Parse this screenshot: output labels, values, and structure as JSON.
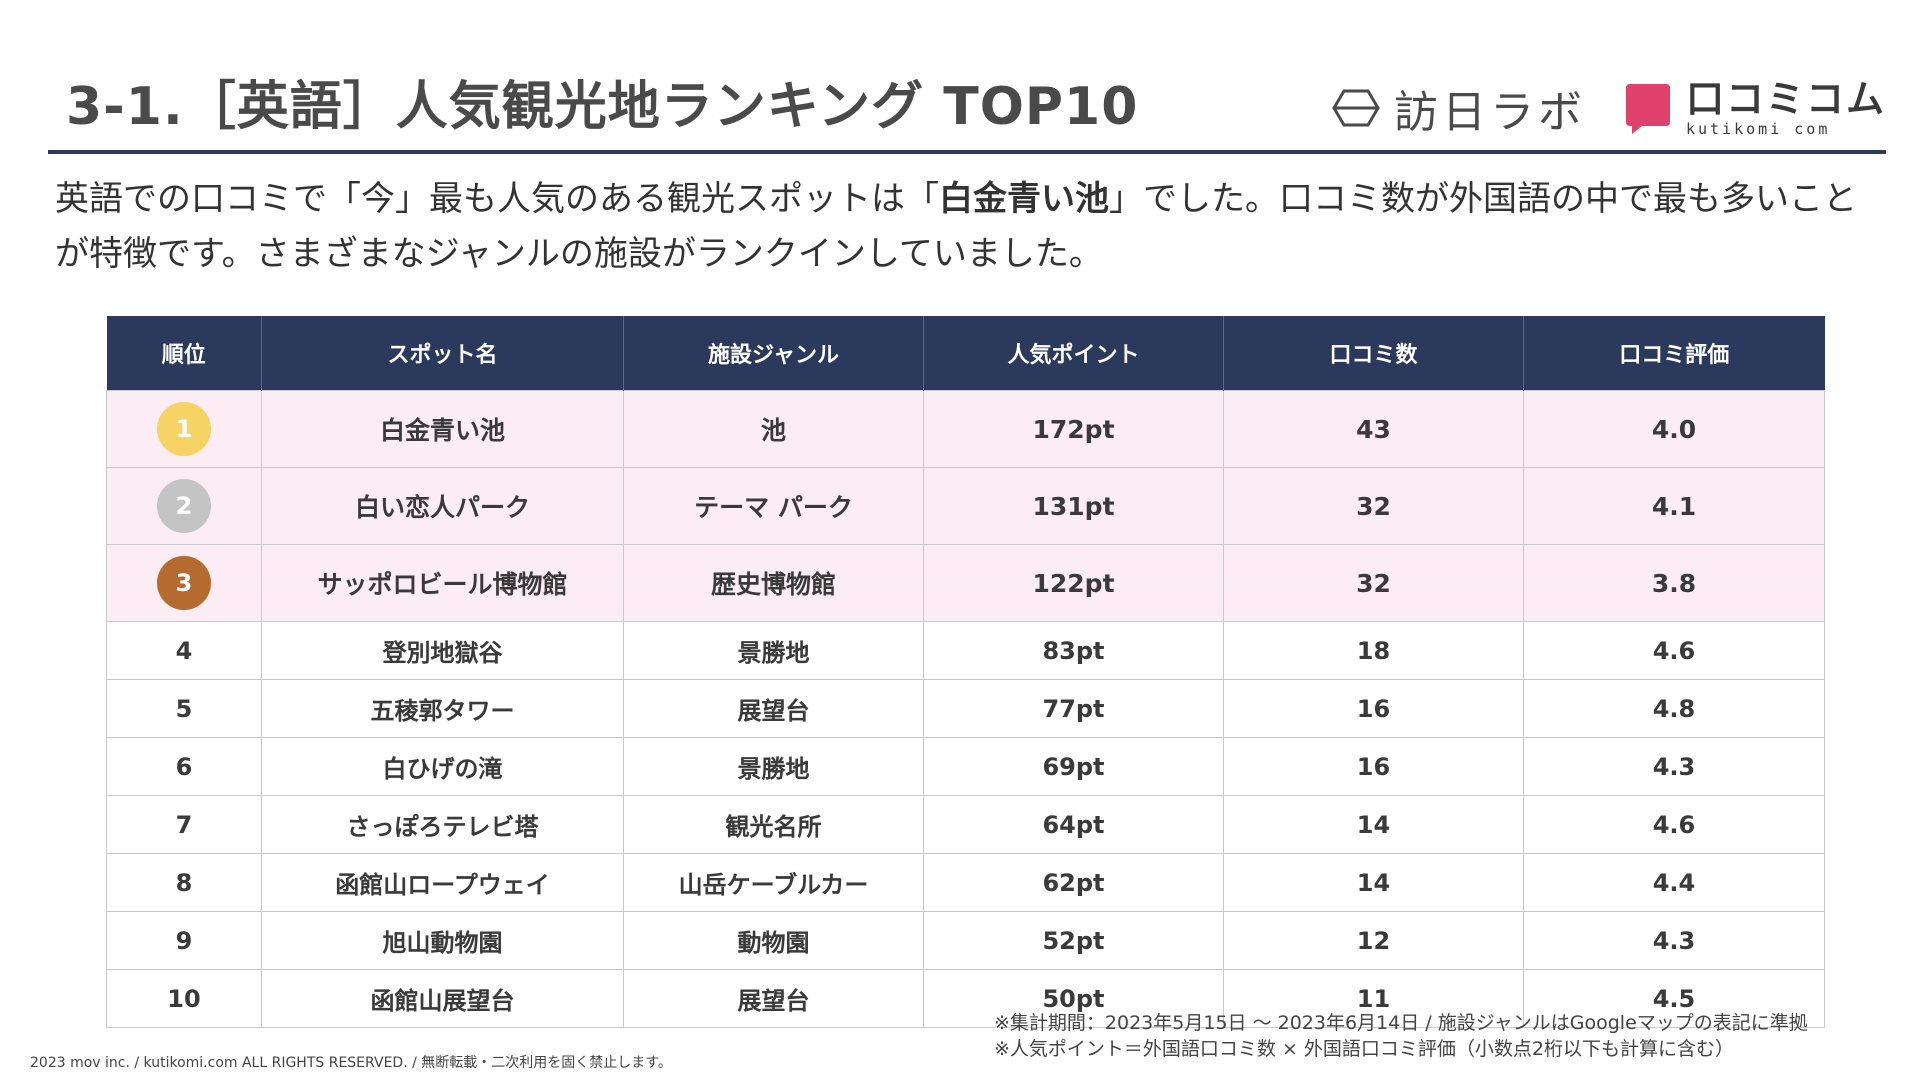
{
  "header": {
    "title": "3-1.［英語］人気観光地ランキング TOP10",
    "logo_hoji": "訪日ラボ",
    "logo_kutikomi": "口コミコム",
    "logo_kutikomi_sub": "kutikomi com"
  },
  "intro": {
    "part1": "英語での口コミで「今」最も人気のある観光スポットは「",
    "highlight": "白金青い池",
    "part2": "」でした。口コミ数が外国語の中で最も多いことが特徴です。さまざまなジャンルの施設がランクインしていました。"
  },
  "table": {
    "headers": [
      "順位",
      "スポット名",
      "施設ジャンル",
      "人気ポイント",
      "口コミ数",
      "口コミ評価"
    ],
    "rows": [
      {
        "rank": "1",
        "spot": "白金青い池",
        "genre": "池",
        "points": "172pt",
        "reviews": "43",
        "rating": "4.0"
      },
      {
        "rank": "2",
        "spot": "白い恋人パーク",
        "genre": "テーマ パーク",
        "points": "131pt",
        "reviews": "32",
        "rating": "4.1"
      },
      {
        "rank": "3",
        "spot": "サッポロビール博物館",
        "genre": "歴史博物館",
        "points": "122pt",
        "reviews": "32",
        "rating": "3.8"
      },
      {
        "rank": "4",
        "spot": "登別地獄谷",
        "genre": "景勝地",
        "points": "83pt",
        "reviews": "18",
        "rating": "4.6"
      },
      {
        "rank": "5",
        "spot": "五稜郭タワー",
        "genre": "展望台",
        "points": "77pt",
        "reviews": "16",
        "rating": "4.8"
      },
      {
        "rank": "6",
        "spot": "白ひげの滝",
        "genre": "景勝地",
        "points": "69pt",
        "reviews": "16",
        "rating": "4.3"
      },
      {
        "rank": "7",
        "spot": "さっぽろテレビ塔",
        "genre": "観光名所",
        "points": "64pt",
        "reviews": "14",
        "rating": "4.6"
      },
      {
        "rank": "8",
        "spot": "函館山ロープウェイ",
        "genre": "山岳ケーブルカー",
        "points": "62pt",
        "reviews": "14",
        "rating": "4.4"
      },
      {
        "rank": "9",
        "spot": "旭山動物園",
        "genre": "動物園",
        "points": "52pt",
        "reviews": "12",
        "rating": "4.3"
      },
      {
        "rank": "10",
        "spot": "函館山展望台",
        "genre": "展望台",
        "points": "50pt",
        "reviews": "11",
        "rating": "4.5"
      }
    ],
    "medal_colors": [
      "#f7d264",
      "#c4c4c4",
      "#b56a2f"
    ],
    "highlight_row_color": "#fcedf4"
  },
  "notes": {
    "line1": "※集計期間：2023年5月15日 〜 2023年6月14日 / 施設ジャンルはGoogleマップの表記に準拠",
    "line2": "※人気ポイント＝外国語口コミ数 × 外国語口コミ評価（小数点2桁以下も計算に含む）"
  },
  "footer": {
    "copyright": "2023 mov inc. / kutikomi.com ALL RIGHTS RESERVED. / 無断転載・二次利用を固く禁止します。"
  }
}
